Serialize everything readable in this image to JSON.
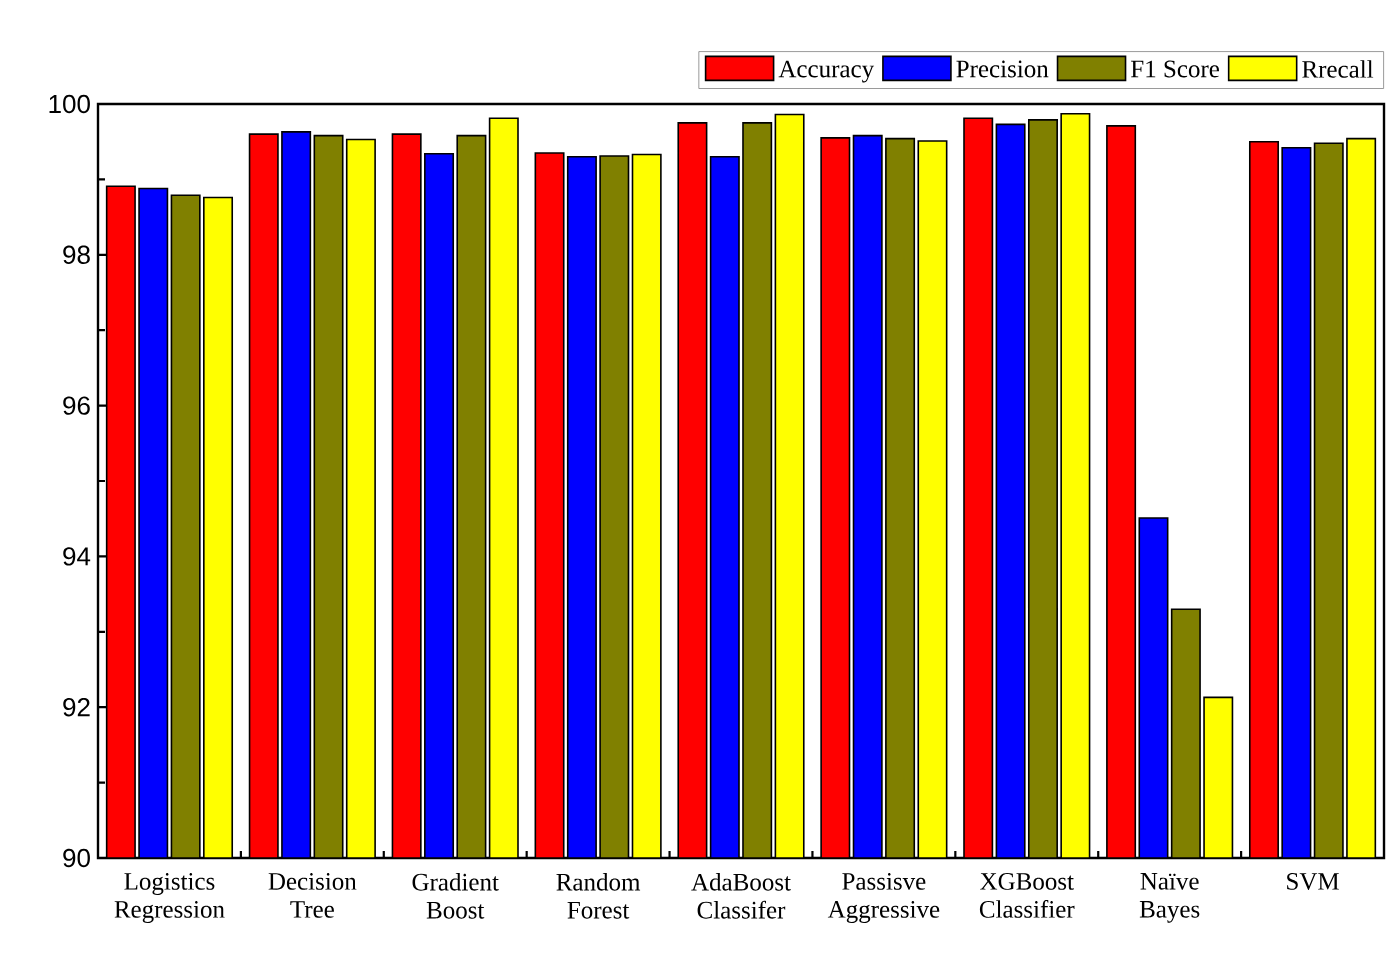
{
  "chart_data": {
    "type": "bar",
    "categories": [
      "Logistics Regression",
      "Decision Tree",
      "Gradient Boost",
      "Random Forest",
      "AdaBoost Classifer",
      "Passisve Aggressive",
      "XGBoost Classifier",
      "Naïve Bayes",
      "SVM"
    ],
    "series": [
      {
        "name": "Accuracy",
        "color": "#ff0000",
        "values": [
          98.91,
          99.6,
          99.6,
          99.35,
          99.75,
          99.55,
          99.81,
          99.71,
          99.5
        ]
      },
      {
        "name": "Precision",
        "color": "#0000ff",
        "values": [
          98.88,
          99.63,
          99.34,
          99.3,
          99.3,
          99.58,
          99.73,
          94.51,
          99.42
        ]
      },
      {
        "name": "F1 Score",
        "color": "#808000",
        "values": [
          98.79,
          99.58,
          99.58,
          99.31,
          99.75,
          99.54,
          99.79,
          93.3,
          99.48
        ]
      },
      {
        "name": "Rrecall",
        "color": "#ffff00",
        "values": [
          98.76,
          99.53,
          99.81,
          99.33,
          99.86,
          99.51,
          99.87,
          92.13,
          99.54
        ]
      }
    ],
    "ylim": [
      90,
      100
    ],
    "yticks": [
      90,
      92,
      94,
      96,
      98,
      100
    ],
    "grid": false,
    "legend": "top right"
  }
}
